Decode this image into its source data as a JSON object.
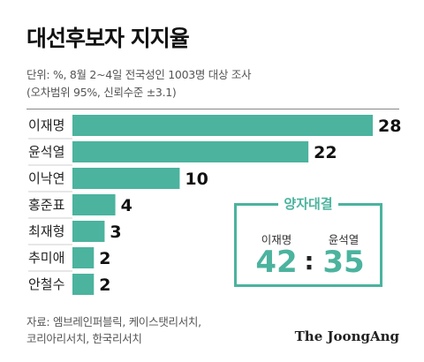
{
  "title": "대선후보자 지지율",
  "notes": [
    "단위: %, 8월 2~4일 전국성인 1003명 대상 조사",
    "(오차범위 95%, 신뢰수준 ±3.1)"
  ],
  "chart_data": {
    "type": "bar",
    "orientation": "horizontal",
    "categories": [
      "이재명",
      "윤석열",
      "이낙연",
      "홍준표",
      "최재형",
      "추미애",
      "안철수"
    ],
    "values": [
      28,
      22,
      10,
      4,
      3,
      2,
      2
    ],
    "value_labels": [
      "28",
      "22",
      "10",
      "4",
      "3",
      "2",
      "2"
    ],
    "xlim": [
      0,
      28
    ],
    "bar_color": "#4bb39e"
  },
  "matchup": {
    "title": "양자대결",
    "left_name": "이재명",
    "left_value": "42",
    "separator": ":",
    "right_name": "윤석열",
    "right_value": "35",
    "accent_color": "#4bb39e"
  },
  "source_lines": [
    "자료: 엠브레인퍼블릭, 케이스탯리서치,",
    "코리아리서치, 한국리서치"
  ],
  "brand": "The JoongAng"
}
